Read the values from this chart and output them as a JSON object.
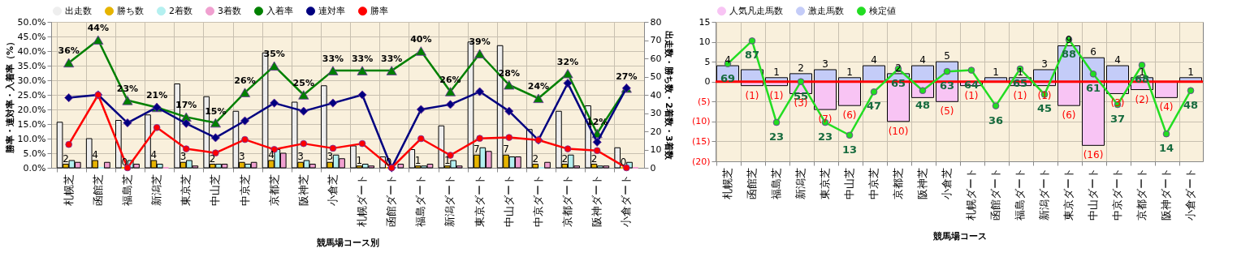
{
  "chart_data": [
    {
      "type": "bar",
      "categories": [
        "札幌芝",
        "函館芝",
        "福島芝",
        "新潟芝",
        "東京芝",
        "中山芝",
        "中京芝",
        "京都芝",
        "阪神芝",
        "小倉芝",
        "札幌ダート",
        "函館ダート",
        "福島ダート",
        "新潟ダート",
        "東京ダート",
        "中山ダート",
        "中京ダート",
        "京都ダート",
        "阪神ダート",
        "小倉ダート"
      ],
      "xlabel": "競馬場コース別",
      "ylabel": "勝率・連対率・入着率（%）",
      "y2label": "出走数・勝ち数・2着数・3着数",
      "ylim": [
        0,
        50
      ],
      "yticks": [
        {
          "value": 0,
          "label": "0.0%"
        },
        {
          "value": 5,
          "label": "5.0%"
        },
        {
          "value": 10,
          "label": "10.0%"
        },
        {
          "value": 15,
          "label": "15.0%"
        },
        {
          "value": 20,
          "label": "20.0%"
        },
        {
          "value": 25,
          "label": "25.0%"
        },
        {
          "value": 30,
          "label": "30.0%"
        },
        {
          "value": 35,
          "label": "35.0%"
        },
        {
          "value": 40,
          "label": "40.0%"
        },
        {
          "value": 45,
          "label": "45.0%"
        },
        {
          "value": 50,
          "label": "50.0%"
        }
      ],
      "y2lim": [
        0,
        80
      ],
      "y2ticks": [
        0,
        10,
        20,
        30,
        40,
        50,
        60,
        70,
        80
      ],
      "grid": true,
      "legend": "top",
      "series": [
        {
          "name": "出走数",
          "axis": "y2",
          "color": "#eeeeee",
          "values": [
            25,
            16,
            26,
            29,
            46,
            39,
            31,
            63,
            36,
            45,
            12,
            6,
            10,
            23,
            69,
            67,
            21,
            31,
            34,
            11
          ]
        },
        {
          "name": "勝ち数",
          "axis": "y2",
          "color": "#e6b400",
          "values": [
            2,
            4,
            0,
            4,
            3,
            2,
            3,
            4,
            3,
            3,
            1,
            0,
            1,
            1,
            7,
            7,
            2,
            2,
            2,
            0
          ],
          "value_labels": [
            "2",
            "4",
            "0",
            "4",
            "3",
            "2",
            "3",
            "4",
            "3",
            "3",
            "1",
            "0",
            "1",
            "1",
            "7",
            "7",
            "2",
            "2",
            "2",
            "0"
          ]
        },
        {
          "name": "2着数",
          "axis": "y2",
          "color": "#b4f0f0",
          "values": [
            4,
            0,
            4,
            2,
            4,
            2,
            2,
            10,
            4,
            7,
            2,
            0,
            1,
            4,
            11,
            6,
            0,
            7,
            1,
            3
          ]
        },
        {
          "name": "3着数",
          "axis": "y2",
          "color": "#f0a0d0",
          "values": [
            3,
            3,
            2,
            0,
            1,
            2,
            3,
            8,
            2,
            5,
            1,
            2,
            2,
            1,
            9,
            6,
            3,
            1,
            1,
            0
          ]
        },
        {
          "name": "入着率",
          "type": "line",
          "color": "#008000",
          "marker": "triangle",
          "values": [
            36.0,
            43.8,
            23.1,
            20.7,
            17.4,
            15.4,
            25.8,
            34.9,
            25.0,
            33.3,
            33.3,
            33.3,
            40.0,
            26.1,
            39.1,
            28.4,
            23.8,
            32.3,
            11.8,
            27.3
          ],
          "value_labels": [
            "36%",
            "44%",
            "23%",
            "21%",
            "17%",
            "15%",
            "26%",
            "35%",
            "25%",
            "33%",
            "33%",
            "33%",
            "40%",
            "26%",
            "39%",
            "28%",
            "24%",
            "32%",
            "12%",
            "27%"
          ]
        },
        {
          "name": "連対率",
          "type": "line",
          "color": "#000080",
          "marker": "diamond",
          "values": [
            24.0,
            25.0,
            15.4,
            20.7,
            15.2,
            10.3,
            16.1,
            22.2,
            19.4,
            22.2,
            25.0,
            0,
            20.0,
            21.7,
            26.1,
            19.4,
            9.5,
            29.0,
            8.8,
            27.3
          ]
        },
        {
          "name": "勝率",
          "type": "line",
          "color": "#ff0000",
          "marker": "circle",
          "values": [
            8.0,
            25.0,
            0,
            13.8,
            6.5,
            5.1,
            9.7,
            6.3,
            8.3,
            6.7,
            8.3,
            0,
            10.0,
            4.3,
            10.1,
            10.4,
            9.5,
            6.5,
            5.9,
            0
          ]
        }
      ]
    },
    {
      "type": "bar",
      "categories": [
        "札幌芝",
        "函館芝",
        "福島芝",
        "新潟芝",
        "東京芝",
        "中山芝",
        "中京芝",
        "京都芝",
        "阪神芝",
        "小倉芝",
        "札幌ダート",
        "函館ダート",
        "福島ダート",
        "新潟ダート",
        "東京ダート",
        "中山ダート",
        "中京ダート",
        "京都ダート",
        "阪神ダート",
        "小倉ダート"
      ],
      "xlabel": "競馬場コース",
      "ylim": [
        -20,
        15
      ],
      "yticks": [
        15,
        10,
        5,
        0,
        {
          "value": -5,
          "label": "(5)"
        },
        {
          "value": -10,
          "label": "(10)"
        },
        {
          "value": -15,
          "label": "(15)"
        },
        {
          "value": -20,
          "label": "(20)"
        }
      ],
      "y2lim": [
        -7.5,
        101.875
      ],
      "grid": true,
      "legend": "top",
      "stacked": true,
      "ref_lines": [
        {
          "axis": "y",
          "value": 0,
          "color": "#ff0000"
        }
      ],
      "series": [
        {
          "name": "人気凡走馬数",
          "color": "#f8c4f4",
          "values": [
            0,
            -1,
            -1,
            -3,
            -7,
            -6,
            0,
            -10,
            -4,
            -5,
            -1,
            0,
            -1,
            -1,
            -6,
            -16,
            -3,
            -2,
            -4,
            0
          ],
          "value_labels": [
            null,
            "(1)",
            "(1)",
            "(3)",
            "(7)",
            "(6)",
            null,
            "(10)",
            null,
            "(5)",
            "(1)",
            null,
            "(1)",
            "(1)",
            "(6)",
            "(16)",
            "(3)",
            "(2)",
            "(4)",
            null
          ]
        },
        {
          "name": "激走馬数",
          "color": "#c4ccf8",
          "values": [
            4,
            3,
            1,
            2,
            3,
            1,
            4,
            2,
            4,
            5,
            0,
            1,
            1,
            3,
            9,
            6,
            4,
            1,
            0,
            1
          ],
          "value_labels": [
            "4",
            null,
            "1",
            "2",
            "3",
            "1",
            "4",
            "2",
            "4",
            "5",
            null,
            "1",
            "1",
            "3",
            "9",
            "6",
            "4",
            "1",
            null,
            "1"
          ]
        },
        {
          "name": "検定値",
          "type": "line",
          "axis": "y2",
          "color": "#22dd22",
          "marker": "circle",
          "data_labels": true,
          "values": [
            69,
            87,
            23,
            55,
            23,
            13,
            47,
            65,
            48,
            63,
            64,
            36,
            65,
            45,
            88,
            61,
            37,
            68,
            14,
            48
          ]
        }
      ]
    }
  ]
}
